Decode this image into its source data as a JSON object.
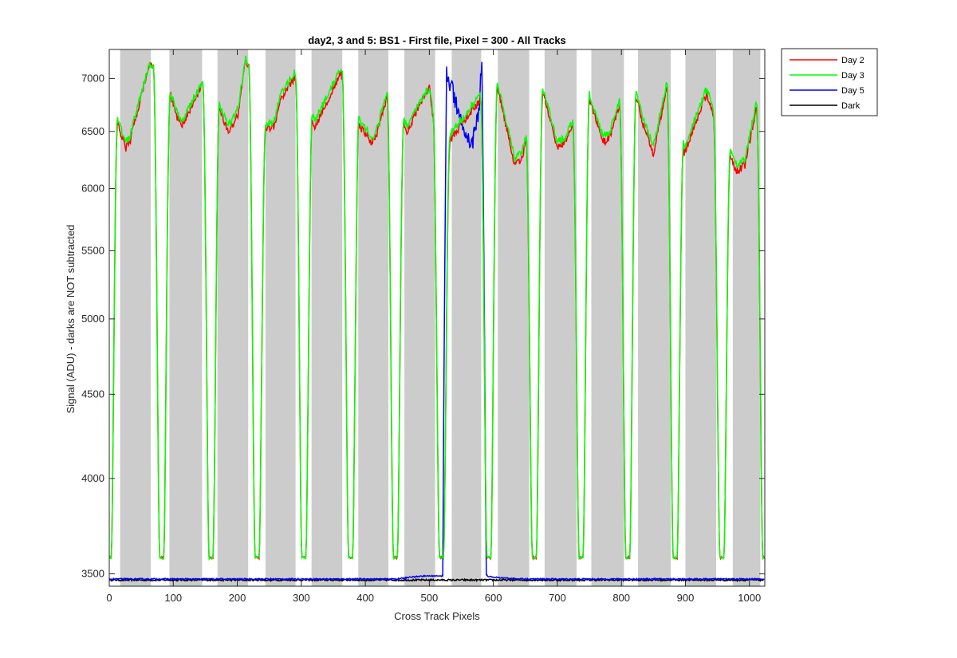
{
  "chart_data": {
    "type": "line",
    "title": "day2, 3 and 5: BS1 - First file, Pixel = 300 - All Tracks",
    "xlabel": "Cross Track Pixels",
    "ylabel": "Signal (ADU) - darks are NOT subtracted",
    "xlim": [
      0,
      1024
    ],
    "ylim": [
      3440,
      7290
    ],
    "y_scale": "log",
    "grid": false,
    "legend_position": "outside-top-right",
    "x_ticks": [
      0,
      100,
      200,
      300,
      400,
      500,
      600,
      700,
      800,
      900,
      1000
    ],
    "y_ticks": [
      3500,
      4000,
      4500,
      5000,
      5500,
      6000,
      6500,
      7000
    ],
    "shaded_bands": [
      [
        17,
        65
      ],
      [
        94,
        145
      ],
      [
        169,
        217
      ],
      [
        244,
        291
      ],
      [
        316,
        364
      ],
      [
        389,
        436
      ],
      [
        461,
        509
      ],
      [
        535,
        581
      ],
      [
        607,
        656
      ],
      [
        680,
        730
      ],
      [
        753,
        804
      ],
      [
        826,
        877
      ],
      [
        900,
        948
      ],
      [
        974,
        1017
      ]
    ],
    "shade_color": "#cccccc",
    "low_x": [
      0,
      82,
      159,
      231,
      304,
      377,
      447,
      519,
      593,
      664,
      737,
      810,
      884,
      957,
      1024
    ],
    "low_y": 3580,
    "series": [
      {
        "name": "Day 2",
        "color": "#ff0000",
        "key_x": [
          4,
          25,
          32,
          63,
          69,
          87,
          92,
          108,
          114,
          149,
          157,
          165,
          172,
          186,
          201,
          213,
          219,
          223,
          229,
          236,
          242,
          258,
          268,
          289,
          296,
          312,
          322,
          362,
          367,
          386,
          391,
          410,
          417,
          435,
          443,
          458,
          465,
          493,
          500,
          510,
          517,
          600,
          607,
          633,
          644,
          672,
          680,
          700,
          713,
          744,
          750,
          771,
          782,
          811,
          818,
          832,
          850,
          872,
          880,
          890,
          898,
          933,
          942,
          950,
          956,
          980,
          993,
          1012,
          1018
        ],
        "key_y": [
          6750,
          6350,
          6400,
          7150,
          7100,
          6950,
          6900,
          6600,
          6550,
          7000,
          7150,
          6850,
          6700,
          6500,
          6650,
          7200,
          7100,
          6950,
          6850,
          6600,
          6500,
          6550,
          6800,
          7000,
          7050,
          6650,
          6550,
          7050,
          6950,
          6700,
          6550,
          6400,
          6450,
          6850,
          6800,
          6600,
          6500,
          6850,
          6900,
          6450,
          6300,
          6950,
          6900,
          6200,
          6250,
          6900,
          6800,
          6350,
          6400,
          6850,
          6800,
          6400,
          6450,
          7050,
          6950,
          6600,
          6300,
          6950,
          6850,
          6600,
          6300,
          6850,
          6700,
          6400,
          6450,
          6150,
          6200,
          6750,
          6700
        ]
      },
      {
        "name": "Day 3",
        "color": "#00ff00",
        "key_x": [
          4,
          25,
          32,
          63,
          69,
          87,
          92,
          108,
          114,
          149,
          157,
          165,
          172,
          186,
          201,
          213,
          219,
          223,
          229,
          236,
          242,
          258,
          268,
          289,
          296,
          312,
          322,
          362,
          367,
          386,
          391,
          410,
          417,
          435,
          443,
          458,
          465,
          493,
          500,
          510,
          517,
          600,
          607,
          633,
          644,
          672,
          680,
          700,
          713,
          744,
          750,
          771,
          782,
          811,
          818,
          832,
          850,
          872,
          880,
          890,
          898,
          933,
          942,
          950,
          956,
          980,
          993,
          1012,
          1018
        ],
        "key_y": [
          6800,
          6400,
          6450,
          7150,
          7100,
          6950,
          6900,
          6650,
          6600,
          7000,
          7150,
          6850,
          6750,
          6550,
          6700,
          7200,
          7100,
          7000,
          6900,
          6600,
          6550,
          6600,
          6850,
          7050,
          7050,
          6700,
          6600,
          7100,
          7000,
          6700,
          6600,
          6450,
          6500,
          6900,
          6850,
          6650,
          6550,
          6850,
          6900,
          6500,
          6350,
          7000,
          6950,
          6250,
          6300,
          6950,
          6850,
          6400,
          6450,
          6900,
          6850,
          6450,
          6500,
          7050,
          7000,
          6650,
          6350,
          7000,
          6900,
          6650,
          6350,
          6900,
          6750,
          6450,
          6500,
          6200,
          6250,
          6800,
          6750
        ]
      },
      {
        "name": "Day 5",
        "color": "#0000ff",
        "baseline": 3475,
        "bump_x": [
          450,
          521
        ],
        "bump_y": 3490,
        "rise_x": [
          521,
          527
        ],
        "fall_x": [
          582,
          590
        ],
        "high_x": [
          527,
          540,
          553,
          565,
          578,
          582
        ],
        "high_y": [
          7050,
          6800,
          6550,
          6350,
          6700,
          7250
        ]
      },
      {
        "name": "Dark",
        "color": "#000000",
        "level": 3470
      }
    ]
  }
}
